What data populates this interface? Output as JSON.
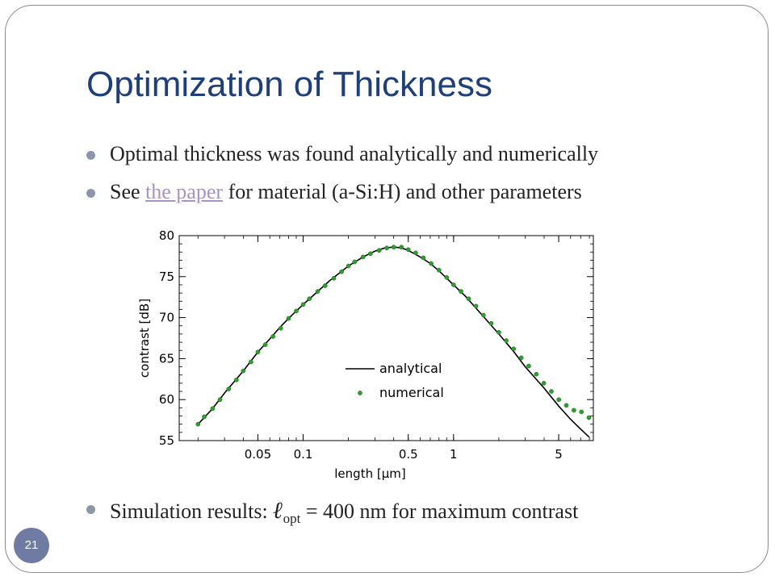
{
  "slide": {
    "title": "Optimization of Thickness",
    "bullets": {
      "b1": "Optimal thickness was found analytically and numerically",
      "b2_pre": "See ",
      "b2_link": "the paper",
      "b2_post": " for material (a-Si:H) and other parameters",
      "b3_pre": "Simulation results: ",
      "b3_symbol": "ℓ",
      "b3_sub": "opt",
      "b3_post": " = 400 nm for maximum contrast"
    },
    "page_number": "21"
  },
  "chart_data": {
    "type": "line",
    "xlabel": "length [μm]",
    "ylabel": "contrast [dB]",
    "x_scale": "log",
    "xlim": [
      0.015,
      8.5
    ],
    "ylim": [
      55,
      80
    ],
    "x_ticks": [
      {
        "value": 0.05,
        "label": "0.05"
      },
      {
        "value": 0.1,
        "label": "0.1"
      },
      {
        "value": 0.5,
        "label": "0.5"
      },
      {
        "value": 1,
        "label": "1"
      },
      {
        "value": 5,
        "label": "5"
      }
    ],
    "y_ticks": [
      {
        "value": 55,
        "label": "55"
      },
      {
        "value": 60,
        "label": "60"
      },
      {
        "value": 65,
        "label": "65"
      },
      {
        "value": 70,
        "label": "70"
      },
      {
        "value": 75,
        "label": "75"
      },
      {
        "value": 80,
        "label": "80"
      }
    ],
    "legend_position": "center",
    "series": [
      {
        "name": "analytical",
        "style": "line",
        "color": "#000000",
        "x": [
          0.02,
          0.025,
          0.03,
          0.04,
          0.05,
          0.06,
          0.07,
          0.08,
          0.1,
          0.12,
          0.15,
          0.2,
          0.25,
          0.3,
          0.35,
          0.4,
          0.45,
          0.5,
          0.6,
          0.7,
          0.8,
          1.0,
          1.2,
          1.5,
          2.0,
          2.5,
          3.0,
          4.0,
          5.0,
          6.0,
          7.0,
          8.0
        ],
        "y": [
          57.0,
          58.9,
          60.8,
          63.5,
          65.8,
          67.4,
          68.8,
          69.9,
          71.6,
          72.9,
          74.5,
          76.3,
          77.4,
          78.1,
          78.5,
          78.6,
          78.5,
          78.2,
          77.4,
          76.6,
          75.7,
          74.0,
          72.6,
          70.6,
          68.0,
          65.9,
          64.0,
          61.4,
          59.2,
          57.6,
          56.4,
          55.4
        ]
      },
      {
        "name": "numerical",
        "style": "markers",
        "color": "#2ca02c",
        "x": [
          0.02,
          0.022,
          0.025,
          0.028,
          0.032,
          0.036,
          0.04,
          0.045,
          0.05,
          0.056,
          0.063,
          0.071,
          0.08,
          0.09,
          0.1,
          0.11,
          0.125,
          0.14,
          0.16,
          0.18,
          0.2,
          0.22,
          0.25,
          0.28,
          0.32,
          0.36,
          0.4,
          0.45,
          0.5,
          0.56,
          0.63,
          0.71,
          0.8,
          0.9,
          1.0,
          1.12,
          1.26,
          1.41,
          1.58,
          1.78,
          2.0,
          2.24,
          2.51,
          2.82,
          3.16,
          3.55,
          3.98,
          4.47,
          5.01,
          5.62,
          6.31,
          7.08,
          7.94
        ],
        "y": [
          57.0,
          57.9,
          58.9,
          60.0,
          61.3,
          62.4,
          63.5,
          64.6,
          65.8,
          66.7,
          67.7,
          68.7,
          69.9,
          70.8,
          71.6,
          72.3,
          73.2,
          73.9,
          74.8,
          75.6,
          76.3,
          76.8,
          77.4,
          77.8,
          78.2,
          78.5,
          78.6,
          78.6,
          78.3,
          77.9,
          77.3,
          76.6,
          75.8,
          74.9,
          74.0,
          73.2,
          72.3,
          71.4,
          70.3,
          69.3,
          68.2,
          67.2,
          66.2,
          65.1,
          64.1,
          63.1,
          62.0,
          61.0,
          60.0,
          59.3,
          58.7,
          58.5,
          57.8
        ]
      }
    ]
  }
}
